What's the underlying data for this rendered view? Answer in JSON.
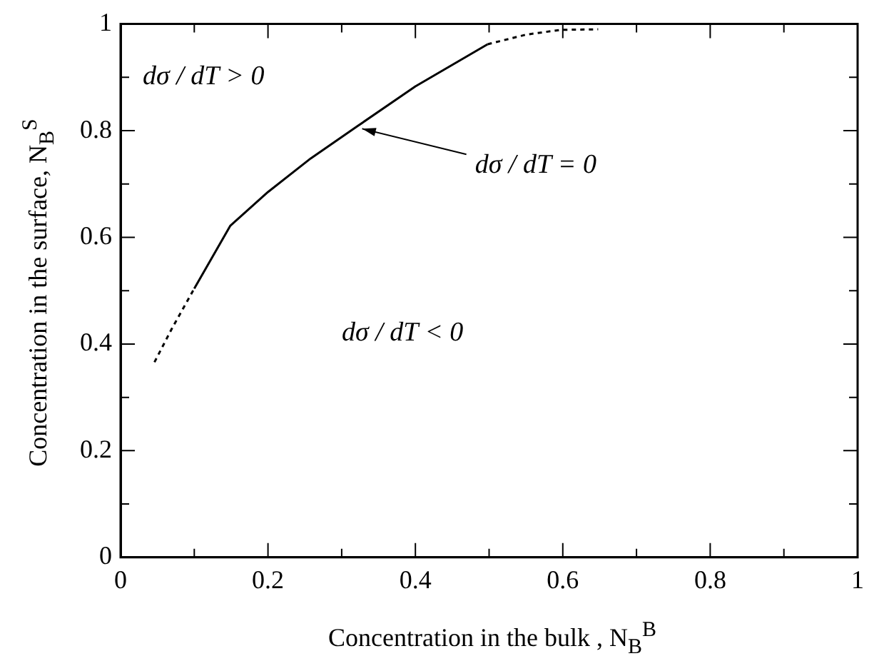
{
  "chart_data": {
    "type": "line",
    "xlabel": "Concentration in the bulk , N$_{B}$$^{B}$",
    "ylabel": "Concentration in the surface, N$_{B}$$^{S}$",
    "series": [
      {
        "color": "#000000",
        "line_style": "dotted",
        "x": [
          0.046,
          0.07,
          0.1
        ],
        "values": [
          0.366,
          0.43,
          0.504
        ]
      },
      {
        "color": "#000000",
        "line_style": "solid",
        "x": [
          0.1,
          0.149,
          0.2,
          0.258,
          0.322,
          0.4,
          0.498
        ],
        "values": [
          0.504,
          0.622,
          0.685,
          0.748,
          0.809,
          0.883,
          0.962
        ]
      },
      {
        "color": "#000000",
        "line_style": "dotted",
        "x": [
          0.498,
          0.55,
          0.597,
          0.648
        ],
        "values": [
          0.962,
          0.98,
          0.989,
          0.99
        ]
      }
    ],
    "annotations": [
      "dσ / dT > 0",
      "dσ / dT < 0",
      {
        "text": "dσ / dT = 0",
        "x": 0.322,
        "y": 0.809
      }
    ],
    "xlim": [
      0,
      1
    ],
    "ylim": [
      0,
      1
    ],
    "xticks": [
      0,
      {
        "value": 0.1,
        "label": null
      },
      0.2,
      {
        "value": 0.3,
        "label": null
      },
      0.4,
      {
        "value": 0.5,
        "label": null
      },
      0.6,
      {
        "value": 0.7,
        "label": null
      },
      0.8,
      {
        "value": 0.9,
        "label": null
      },
      1
    ],
    "yticks": [
      0,
      {
        "value": 0.1,
        "label": null
      },
      0.2,
      {
        "value": 0.3,
        "label": null
      },
      0.4,
      {
        "value": 0.5,
        "label": null
      },
      0.6,
      {
        "value": 0.7,
        "label": null
      },
      0.8,
      {
        "value": 0.9,
        "label": null
      },
      1
    ],
    "grid": false,
    "legend": false,
    "marker": "none"
  }
}
